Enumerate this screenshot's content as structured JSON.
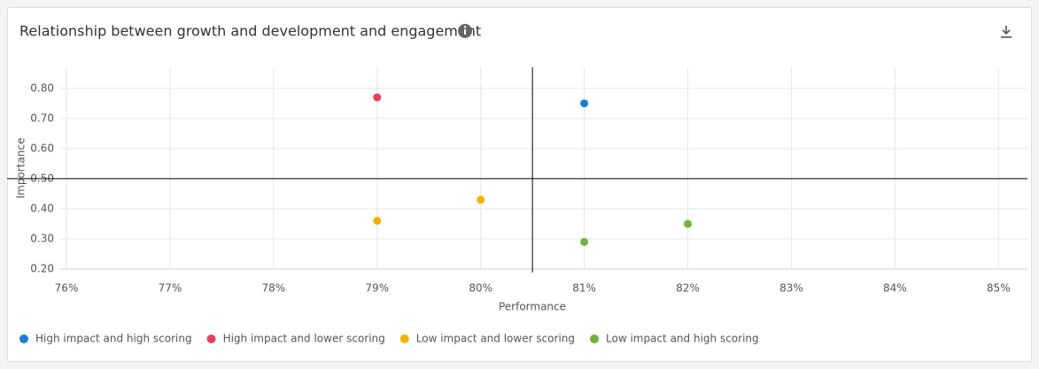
{
  "chart_data": {
    "type": "scatter",
    "title": "Relationship between growth and development and engagement",
    "x_label": "Performance",
    "y_label": "Importance",
    "xlim": [
      75.94,
      85.28
    ],
    "ylim": [
      0.2,
      0.87
    ],
    "xticks": [
      {
        "value": 76,
        "label": "76%"
      },
      {
        "value": 77,
        "label": "77%"
      },
      {
        "value": 78,
        "label": "78%"
      },
      {
        "value": 79,
        "label": "79%"
      },
      {
        "value": 80,
        "label": "80%"
      },
      {
        "value": 81,
        "label": "81%"
      },
      {
        "value": 82,
        "label": "82%"
      },
      {
        "value": 83,
        "label": "83%"
      },
      {
        "value": 84,
        "label": "84%"
      },
      {
        "value": 85,
        "label": "85%"
      }
    ],
    "yticks": [
      {
        "value": 0.2,
        "label": "0.20"
      },
      {
        "value": 0.3,
        "label": "0.30"
      },
      {
        "value": 0.4,
        "label": "0.40"
      },
      {
        "value": 0.5,
        "label": "0.50"
      },
      {
        "value": 0.6,
        "label": "0.60"
      },
      {
        "value": 0.7,
        "label": "0.70"
      },
      {
        "value": 0.8,
        "label": "0.80"
      }
    ],
    "grid": true,
    "reference_lines": {
      "x": 80.5,
      "y": 0.5
    },
    "legend": "bottom-left",
    "series": [
      {
        "name": "High impact and high scoring",
        "color": "#1a7fd4",
        "x": [
          81
        ],
        "values": [
          0.75
        ]
      },
      {
        "name": "High impact and lower scoring",
        "color": "#e5435a",
        "x": [
          79
        ],
        "values": [
          0.77
        ]
      },
      {
        "name": "Low impact and lower scoring",
        "color": "#f5b100",
        "x": [
          79,
          80
        ],
        "values": [
          0.36,
          0.43
        ]
      },
      {
        "name": "Low impact and high scoring",
        "color": "#72b043",
        "x": [
          81,
          82
        ],
        "values": [
          0.29,
          0.35
        ]
      }
    ]
  }
}
